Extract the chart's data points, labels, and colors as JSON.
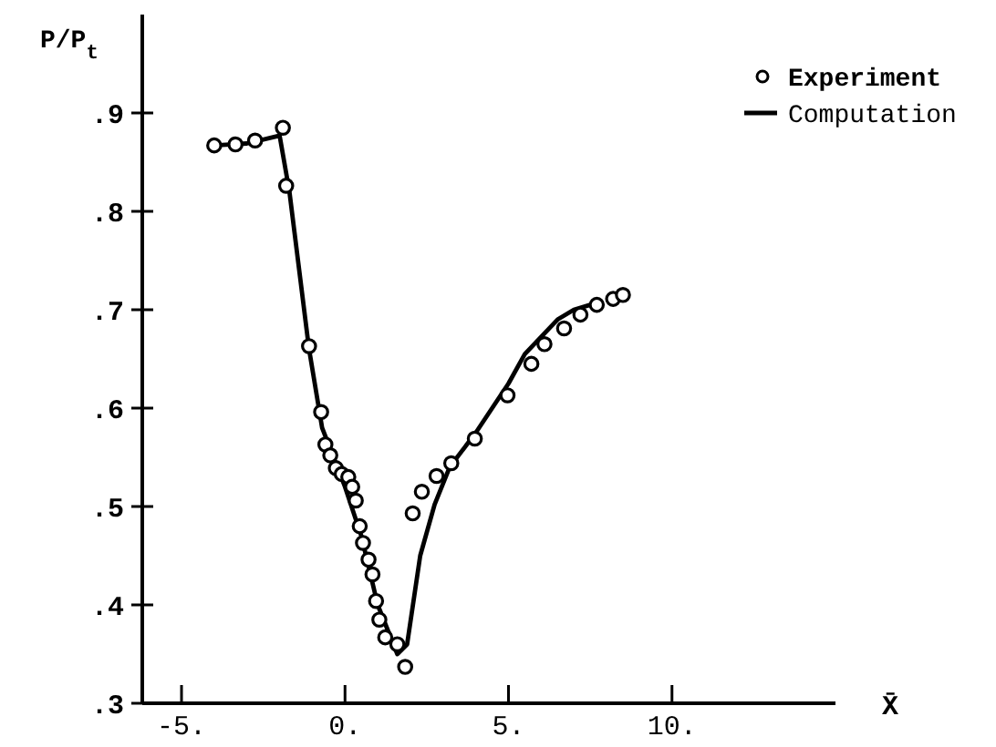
{
  "chart_data": {
    "type": "scatter",
    "xlabel": "X̄",
    "ylabel": "P/P$_{t}$",
    "xlim": [
      -6.2,
      15
    ],
    "ylim": [
      0.3,
      1.0
    ],
    "xticks": [
      {
        "value": -5,
        "label": "-5."
      },
      {
        "value": 0,
        "label": "0."
      },
      {
        "value": 5,
        "label": "5."
      },
      {
        "value": 10,
        "label": "10."
      }
    ],
    "yticks": [
      {
        "value": 0.3,
        "label": ".3"
      },
      {
        "value": 0.4,
        "label": ".4"
      },
      {
        "value": 0.5,
        "label": ".5"
      },
      {
        "value": 0.6,
        "label": ".6"
      },
      {
        "value": 0.7,
        "label": ".7"
      },
      {
        "value": 0.8,
        "label": ".8"
      },
      {
        "value": 0.9,
        "label": ".9"
      }
    ],
    "legend": "top right",
    "grid": false,
    "series": [
      {
        "name": "Experiment",
        "marker": "circle",
        "color": "#000000",
        "x": [
          -4.0,
          -3.35,
          -2.75,
          -1.9,
          -1.8,
          -1.1,
          -0.73,
          -0.6,
          -0.45,
          -0.28,
          -0.1,
          0.1,
          0.22,
          0.33,
          0.45,
          0.55,
          0.72,
          0.84,
          0.95,
          1.05,
          1.23,
          1.6,
          1.84,
          2.07,
          2.35,
          2.8,
          3.25,
          3.97,
          4.97,
          5.7,
          6.1,
          6.7,
          7.2,
          7.7,
          8.2,
          8.5
        ],
        "values": [
          0.867,
          0.868,
          0.872,
          0.885,
          0.826,
          0.663,
          0.596,
          0.563,
          0.552,
          0.539,
          0.533,
          0.53,
          0.52,
          0.506,
          0.48,
          0.463,
          0.446,
          0.431,
          0.404,
          0.385,
          0.367,
          0.36,
          0.337,
          0.493,
          0.515,
          0.531,
          0.544,
          0.569,
          0.613,
          0.645,
          0.665,
          0.681,
          0.695,
          0.705,
          0.711,
          0.715
        ]
      },
      {
        "name": "Computation",
        "type": "line",
        "marker": "none",
        "color": "#000000",
        "x": [
          -4.0,
          -3.0,
          -2.0,
          -1.7,
          -1.1,
          -0.7,
          0.0,
          0.5,
          1.0,
          1.6,
          1.9,
          2.3,
          2.74,
          3.2,
          4.0,
          5.0,
          5.5,
          6.5,
          7.0,
          7.5
        ],
        "values": [
          0.867,
          0.869,
          0.877,
          0.82,
          0.66,
          0.58,
          0.52,
          0.47,
          0.4,
          0.35,
          0.36,
          0.45,
          0.502,
          0.54,
          0.575,
          0.625,
          0.655,
          0.69,
          0.7,
          0.705
        ]
      }
    ]
  }
}
